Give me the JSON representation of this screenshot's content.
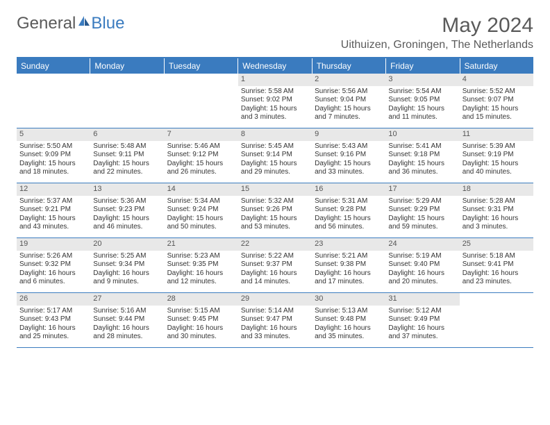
{
  "logo": {
    "general": "General",
    "blue": "Blue"
  },
  "title": "May 2024",
  "location": "Uithuizen, Groningen, The Netherlands",
  "colors": {
    "accent": "#3a7bbf",
    "header_text": "#5a5a5a",
    "daynum_bg": "#e8e8e8",
    "text": "#333333",
    "background": "#ffffff"
  },
  "weekdays": [
    "Sunday",
    "Monday",
    "Tuesday",
    "Wednesday",
    "Thursday",
    "Friday",
    "Saturday"
  ],
  "layout": {
    "columns": 7,
    "rows": 5,
    "first_weekday_index": 3
  },
  "days": [
    {
      "n": 1,
      "sunrise": "5:58 AM",
      "sunset": "9:02 PM",
      "daylight": "15 hours and 3 minutes."
    },
    {
      "n": 2,
      "sunrise": "5:56 AM",
      "sunset": "9:04 PM",
      "daylight": "15 hours and 7 minutes."
    },
    {
      "n": 3,
      "sunrise": "5:54 AM",
      "sunset": "9:05 PM",
      "daylight": "15 hours and 11 minutes."
    },
    {
      "n": 4,
      "sunrise": "5:52 AM",
      "sunset": "9:07 PM",
      "daylight": "15 hours and 15 minutes."
    },
    {
      "n": 5,
      "sunrise": "5:50 AM",
      "sunset": "9:09 PM",
      "daylight": "15 hours and 18 minutes."
    },
    {
      "n": 6,
      "sunrise": "5:48 AM",
      "sunset": "9:11 PM",
      "daylight": "15 hours and 22 minutes."
    },
    {
      "n": 7,
      "sunrise": "5:46 AM",
      "sunset": "9:12 PM",
      "daylight": "15 hours and 26 minutes."
    },
    {
      "n": 8,
      "sunrise": "5:45 AM",
      "sunset": "9:14 PM",
      "daylight": "15 hours and 29 minutes."
    },
    {
      "n": 9,
      "sunrise": "5:43 AM",
      "sunset": "9:16 PM",
      "daylight": "15 hours and 33 minutes."
    },
    {
      "n": 10,
      "sunrise": "5:41 AM",
      "sunset": "9:18 PM",
      "daylight": "15 hours and 36 minutes."
    },
    {
      "n": 11,
      "sunrise": "5:39 AM",
      "sunset": "9:19 PM",
      "daylight": "15 hours and 40 minutes."
    },
    {
      "n": 12,
      "sunrise": "5:37 AM",
      "sunset": "9:21 PM",
      "daylight": "15 hours and 43 minutes."
    },
    {
      "n": 13,
      "sunrise": "5:36 AM",
      "sunset": "9:23 PM",
      "daylight": "15 hours and 46 minutes."
    },
    {
      "n": 14,
      "sunrise": "5:34 AM",
      "sunset": "9:24 PM",
      "daylight": "15 hours and 50 minutes."
    },
    {
      "n": 15,
      "sunrise": "5:32 AM",
      "sunset": "9:26 PM",
      "daylight": "15 hours and 53 minutes."
    },
    {
      "n": 16,
      "sunrise": "5:31 AM",
      "sunset": "9:28 PM",
      "daylight": "15 hours and 56 minutes."
    },
    {
      "n": 17,
      "sunrise": "5:29 AM",
      "sunset": "9:29 PM",
      "daylight": "15 hours and 59 minutes."
    },
    {
      "n": 18,
      "sunrise": "5:28 AM",
      "sunset": "9:31 PM",
      "daylight": "16 hours and 3 minutes."
    },
    {
      "n": 19,
      "sunrise": "5:26 AM",
      "sunset": "9:32 PM",
      "daylight": "16 hours and 6 minutes."
    },
    {
      "n": 20,
      "sunrise": "5:25 AM",
      "sunset": "9:34 PM",
      "daylight": "16 hours and 9 minutes."
    },
    {
      "n": 21,
      "sunrise": "5:23 AM",
      "sunset": "9:35 PM",
      "daylight": "16 hours and 12 minutes."
    },
    {
      "n": 22,
      "sunrise": "5:22 AM",
      "sunset": "9:37 PM",
      "daylight": "16 hours and 14 minutes."
    },
    {
      "n": 23,
      "sunrise": "5:21 AM",
      "sunset": "9:38 PM",
      "daylight": "16 hours and 17 minutes."
    },
    {
      "n": 24,
      "sunrise": "5:19 AM",
      "sunset": "9:40 PM",
      "daylight": "16 hours and 20 minutes."
    },
    {
      "n": 25,
      "sunrise": "5:18 AM",
      "sunset": "9:41 PM",
      "daylight": "16 hours and 23 minutes."
    },
    {
      "n": 26,
      "sunrise": "5:17 AM",
      "sunset": "9:43 PM",
      "daylight": "16 hours and 25 minutes."
    },
    {
      "n": 27,
      "sunrise": "5:16 AM",
      "sunset": "9:44 PM",
      "daylight": "16 hours and 28 minutes."
    },
    {
      "n": 28,
      "sunrise": "5:15 AM",
      "sunset": "9:45 PM",
      "daylight": "16 hours and 30 minutes."
    },
    {
      "n": 29,
      "sunrise": "5:14 AM",
      "sunset": "9:47 PM",
      "daylight": "16 hours and 33 minutes."
    },
    {
      "n": 30,
      "sunrise": "5:13 AM",
      "sunset": "9:48 PM",
      "daylight": "16 hours and 35 minutes."
    },
    {
      "n": 31,
      "sunrise": "5:12 AM",
      "sunset": "9:49 PM",
      "daylight": "16 hours and 37 minutes."
    }
  ],
  "labels": {
    "sunrise_prefix": "Sunrise: ",
    "sunset_prefix": "Sunset: ",
    "daylight_prefix": "Daylight: "
  }
}
